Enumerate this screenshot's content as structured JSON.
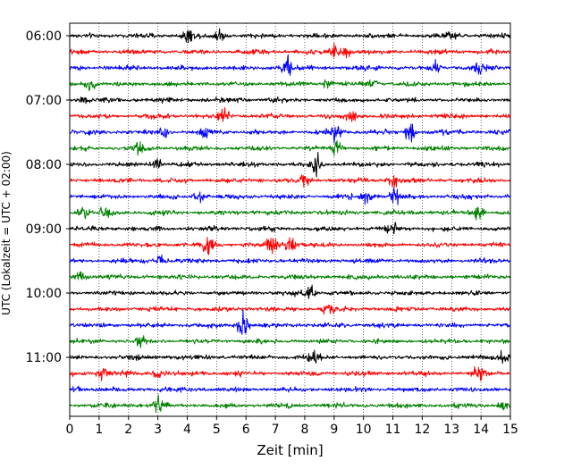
{
  "chart_data": {
    "type": "seismic-helicorder",
    "xlabel": "Zeit  [min]",
    "ylabel": "UTC (Lokalzeit = UTC + 02:00)",
    "xlim": [
      0,
      15
    ],
    "x_ticks": [
      0,
      1,
      2,
      3,
      4,
      5,
      6,
      7,
      8,
      9,
      10,
      11,
      12,
      13,
      14,
      15
    ],
    "x_tick_labels": [
      "0",
      "1",
      "2",
      "3",
      "4",
      "5",
      "6",
      "7",
      "8",
      "9",
      "10",
      "11",
      "12",
      "13",
      "14",
      "15"
    ],
    "x_grid": "dotted vertical at each minute",
    "y_tick_labels": [
      "06:00",
      "07:00",
      "08:00",
      "09:00",
      "10:00",
      "11:00"
    ],
    "colors_cycle": [
      "#000000",
      "#ff0000",
      "#0000ff",
      "#008000"
    ],
    "traces": [
      {
        "start": "06:00",
        "color": "#000000",
        "bursts": [
          {
            "t": 4.0,
            "amp": 0.55
          },
          {
            "t": 5.1,
            "amp": 0.5
          },
          {
            "t": 13.0,
            "amp": 0.35
          }
        ]
      },
      {
        "start": "06:15",
        "color": "#ff0000",
        "bursts": [
          {
            "t": 9.0,
            "amp": 0.45
          },
          {
            "t": 9.4,
            "amp": 0.4
          }
        ]
      },
      {
        "start": "06:30",
        "color": "#0000ff",
        "bursts": [
          {
            "t": 7.4,
            "amp": 0.9
          },
          {
            "t": 12.5,
            "amp": 0.6
          },
          {
            "t": 13.9,
            "amp": 0.45
          }
        ]
      },
      {
        "start": "06:45",
        "color": "#008000",
        "bursts": [
          {
            "t": 0.7,
            "amp": 0.4
          },
          {
            "t": 8.8,
            "amp": 0.4
          },
          {
            "t": 10.3,
            "amp": 0.35
          }
        ]
      },
      {
        "start": "07:00",
        "color": "#000000",
        "bursts": [
          {
            "t": 0.5,
            "amp": 0.3
          }
        ]
      },
      {
        "start": "07:15",
        "color": "#ff0000",
        "bursts": [
          {
            "t": 5.2,
            "amp": 0.7
          },
          {
            "t": 9.6,
            "amp": 0.3
          }
        ]
      },
      {
        "start": "07:30",
        "color": "#0000ff",
        "bursts": [
          {
            "t": 3.2,
            "amp": 0.55
          },
          {
            "t": 4.6,
            "amp": 0.5
          },
          {
            "t": 9.0,
            "amp": 1.1
          },
          {
            "t": 11.6,
            "amp": 1.0
          }
        ]
      },
      {
        "start": "07:45",
        "color": "#008000",
        "bursts": [
          {
            "t": 2.4,
            "amp": 0.35
          },
          {
            "t": 9.1,
            "amp": 0.7
          }
        ]
      },
      {
        "start": "08:00",
        "color": "#000000",
        "bursts": [
          {
            "t": 3.0,
            "amp": 0.45
          },
          {
            "t": 8.4,
            "amp": 0.75
          }
        ]
      },
      {
        "start": "08:15",
        "color": "#ff0000",
        "bursts": [
          {
            "t": 8.0,
            "amp": 0.4
          },
          {
            "t": 11.0,
            "amp": 0.5
          }
        ]
      },
      {
        "start": "08:30",
        "color": "#0000ff",
        "bursts": [
          {
            "t": 4.4,
            "amp": 0.6
          },
          {
            "t": 10.1,
            "amp": 0.7
          },
          {
            "t": 11.1,
            "amp": 0.65
          }
        ]
      },
      {
        "start": "08:45",
        "color": "#008000",
        "bursts": [
          {
            "t": 0.5,
            "amp": 0.7
          },
          {
            "t": 1.2,
            "amp": 0.6
          },
          {
            "t": 13.9,
            "amp": 0.55
          }
        ]
      },
      {
        "start": "09:00",
        "color": "#000000",
        "bursts": [
          {
            "t": 11.0,
            "amp": 0.35
          }
        ]
      },
      {
        "start": "09:15",
        "color": "#ff0000",
        "bursts": [
          {
            "t": 4.7,
            "amp": 0.95
          },
          {
            "t": 6.9,
            "amp": 0.9
          },
          {
            "t": 7.5,
            "amp": 0.9
          }
        ]
      },
      {
        "start": "09:30",
        "color": "#0000ff",
        "bursts": [
          {
            "t": 3.1,
            "amp": 0.35
          }
        ]
      },
      {
        "start": "09:45",
        "color": "#008000",
        "bursts": [
          {
            "t": 0.4,
            "amp": 0.45
          }
        ]
      },
      {
        "start": "10:00",
        "color": "#000000",
        "bursts": [
          {
            "t": 8.2,
            "amp": 0.6
          }
        ]
      },
      {
        "start": "10:15",
        "color": "#ff0000",
        "bursts": [
          {
            "t": 8.8,
            "amp": 0.35
          }
        ]
      },
      {
        "start": "10:30",
        "color": "#0000ff",
        "bursts": [
          {
            "t": 5.9,
            "amp": 1.0
          }
        ]
      },
      {
        "start": "10:45",
        "color": "#008000",
        "bursts": [
          {
            "t": 2.4,
            "amp": 0.4
          }
        ]
      },
      {
        "start": "11:00",
        "color": "#000000",
        "bursts": [
          {
            "t": 8.3,
            "amp": 0.45
          },
          {
            "t": 14.8,
            "amp": 0.5
          }
        ]
      },
      {
        "start": "11:15",
        "color": "#ff0000",
        "bursts": [
          {
            "t": 1.1,
            "amp": 0.5
          },
          {
            "t": 3.0,
            "amp": 0.45
          },
          {
            "t": 13.9,
            "amp": 0.5
          }
        ]
      },
      {
        "start": "11:30",
        "color": "#0000ff",
        "bursts": [
          {
            "t": 0.2,
            "amp": 0.35
          }
        ]
      },
      {
        "start": "11:45",
        "color": "#008000",
        "bursts": [
          {
            "t": 3.0,
            "amp": 0.5
          },
          {
            "t": 14.8,
            "amp": 0.5
          }
        ]
      }
    ]
  }
}
